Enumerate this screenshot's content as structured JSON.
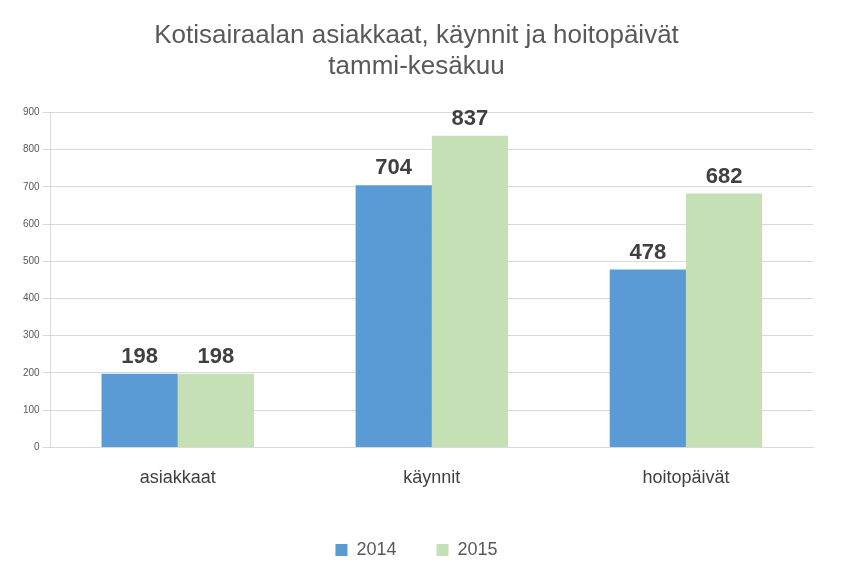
{
  "chart_data": {
    "type": "bar",
    "title": [
      "Kotisairaalan asiakkaat, käynnit ja hoitopäivät",
      "tammi-kesäkuu"
    ],
    "categories": [
      "asiakkaat",
      "käynnit",
      "hoitopäivät"
    ],
    "series": [
      {
        "name": "2014",
        "color": "#5b9bd5",
        "values": [
          198,
          704,
          478
        ]
      },
      {
        "name": "2015",
        "color": "#c5e0b4",
        "values": [
          198,
          837,
          682
        ]
      }
    ],
    "ylim": [
      0,
      900
    ],
    "yticks": [
      0,
      100,
      200,
      300,
      400,
      500,
      600,
      700,
      800,
      900
    ],
    "grid": true,
    "legend": "bottom",
    "data_labels": true
  }
}
